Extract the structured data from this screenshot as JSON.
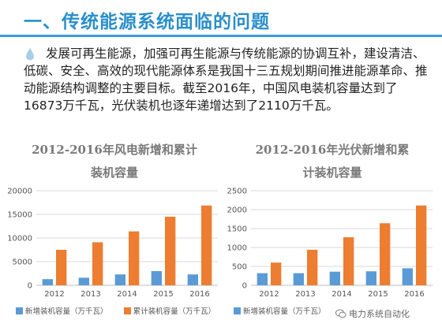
{
  "header": {
    "title": "一、传统能源系统面临的问题"
  },
  "body_text": "发展可再生能源，加强可再生能源与传统能源的协调互补，建设清洁、低碳、安全、高效的现代能源体系是我国十三五规划期间推进能源革命、推动能源结构调整的主要目标。截至2016年，中国风电装机容量达到了16873万千瓦，光伏装机也逐年递增达到了2110万千瓦。",
  "colors": {
    "accent": "#2a8fc9",
    "new_series": "#5b9bd5",
    "cum_series": "#ed7d31"
  },
  "watermark": "电力系统自动化",
  "chart_data": [
    {
      "type": "bar",
      "title_line1": "2012-2016年风电新增和累计",
      "title_line2": "装机容量",
      "categories": [
        "2012",
        "2013",
        "2014",
        "2015",
        "2016"
      ],
      "series": [
        {
          "name": "新增装机容量（万千瓦）",
          "values": [
            1300,
            1600,
            2300,
            3000,
            2300
          ]
        },
        {
          "name": "累计装机容量（万千瓦）",
          "values": [
            7500,
            9100,
            11400,
            14500,
            16873
          ]
        }
      ],
      "ylim": [
        0,
        20000
      ],
      "yticks": [
        "0",
        "5000",
        "10000",
        "15000",
        "20000"
      ],
      "grid": true,
      "legend": "bottom"
    },
    {
      "type": "bar",
      "title_line1": "2012-2016年光伏新增和累",
      "title_line2": "计装机容量",
      "categories": [
        "2012",
        "2013",
        "2014",
        "2015",
        "2016"
      ],
      "series": [
        {
          "name": "新增装机容量（万千瓦）",
          "values": [
            320,
            320,
            360,
            370,
            450
          ]
        },
        {
          "name": "累计装机容量（万千瓦）",
          "values": [
            600,
            940,
            1270,
            1640,
            2110
          ]
        }
      ],
      "ylim": [
        0,
        2500
      ],
      "yticks": [
        "0",
        "500",
        "1000",
        "1500",
        "2000",
        "2500"
      ],
      "grid": true,
      "legend": "bottom"
    }
  ]
}
